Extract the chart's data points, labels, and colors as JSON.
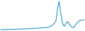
{
  "x": [
    0,
    1,
    2,
    3,
    4,
    5,
    6,
    7,
    8,
    9,
    10,
    11,
    12,
    13,
    14,
    15,
    16,
    17,
    18,
    19,
    20,
    21,
    22,
    23,
    24,
    25,
    26,
    27,
    28,
    29,
    30,
    31,
    32,
    33,
    34,
    35,
    36,
    37,
    38,
    39,
    40,
    41,
    42,
    43,
    44,
    45,
    46,
    47,
    48,
    49,
    50
  ],
  "y": [
    1,
    1,
    1,
    1.2,
    1.3,
    1.5,
    1.6,
    1.8,
    2,
    2.2,
    2.5,
    2.8,
    3,
    3.2,
    3.5,
    3.8,
    4,
    4.2,
    4.5,
    4.8,
    5,
    5.2,
    5.5,
    6,
    6.5,
    7,
    7.5,
    8,
    9,
    10,
    12,
    16,
    22,
    28,
    70,
    95,
    55,
    22,
    12,
    20,
    28,
    20,
    12,
    8,
    10,
    18,
    25,
    30,
    32,
    33,
    34
  ],
  "line_color": "#2196c4",
  "bg_color": "#ffffff",
  "linewidth": 0.8
}
